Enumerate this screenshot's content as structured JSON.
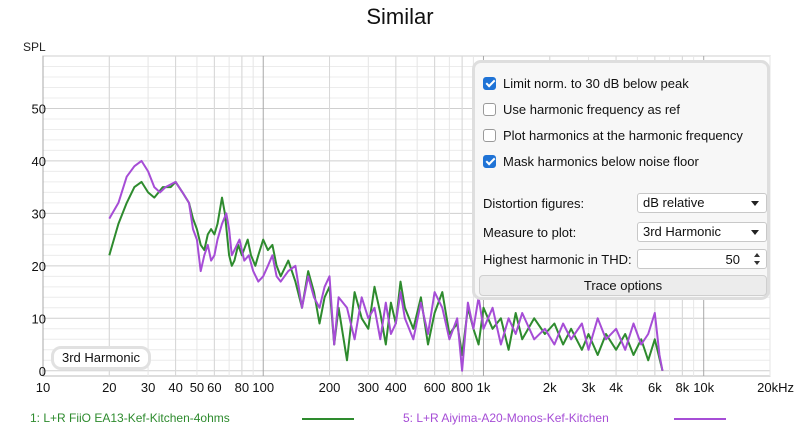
{
  "title": "Similar",
  "colors": {
    "series1": "#2e8b2e",
    "series2": "#a64dd6",
    "accent": "#1f73d6"
  },
  "options_panel": {
    "checkboxes": [
      {
        "label": "Limit norm. to 30 dB below peak",
        "checked": true
      },
      {
        "label": "Use harmonic frequency as ref",
        "checked": false
      },
      {
        "label": "Plot harmonics at the harmonic frequency",
        "checked": false
      },
      {
        "label": "Mask harmonics below noise floor",
        "checked": true
      }
    ],
    "distortion_figures": {
      "label": "Distortion figures:",
      "value": "dB relative"
    },
    "measure_to_plot": {
      "label": "Measure to plot:",
      "value": "3rd Harmonic"
    },
    "highest_harmonic": {
      "label": "Highest harmonic in THD:",
      "value": "50"
    },
    "trace_options_label": "Trace options"
  },
  "badge": "3rd Harmonic",
  "legend": [
    {
      "label": "1: L+R FiiO EA13-Kef-Kitchen-4ohms",
      "color": "#2e8b2e"
    },
    {
      "label": "5: L+R Aiyima-A20-Monos-Kef-Kitchen",
      "color": "#a64dd6"
    }
  ],
  "chart_data": {
    "type": "line",
    "ylabel": "SPL",
    "xscale": "log",
    "xlim": [
      10,
      20000
    ],
    "ylim": [
      -1,
      60
    ],
    "y_ticks": [
      0,
      10,
      20,
      30,
      40,
      50
    ],
    "x_ticks": [
      {
        "v": 10,
        "label": "10"
      },
      {
        "v": 20,
        "label": "20"
      },
      {
        "v": 30,
        "label": "30"
      },
      {
        "v": 40,
        "label": "40"
      },
      {
        "v": 50,
        "label": "50"
      },
      {
        "v": 60,
        "label": "60"
      },
      {
        "v": 80,
        "label": "80"
      },
      {
        "v": 100,
        "label": "100"
      },
      {
        "v": 200,
        "label": "200"
      },
      {
        "v": 300,
        "label": "300"
      },
      {
        "v": 400,
        "label": "400"
      },
      {
        "v": 600,
        "label": "600"
      },
      {
        "v": 800,
        "label": "800"
      },
      {
        "v": 1000,
        "label": "1k"
      },
      {
        "v": 2000,
        "label": "2k"
      },
      {
        "v": 3000,
        "label": "3k"
      },
      {
        "v": 4000,
        "label": "4k"
      },
      {
        "v": 6000,
        "label": "6k"
      },
      {
        "v": 8000,
        "label": "8k"
      },
      {
        "v": 10000,
        "label": "10k"
      },
      {
        "v": 20000,
        "label": "20kHz"
      }
    ],
    "grid": true,
    "series": [
      {
        "name": "1: L+R FiiO EA13-Kef-Kitchen-4ohms",
        "color": "#2e8b2e",
        "points": [
          [
            20,
            22
          ],
          [
            22,
            28
          ],
          [
            24,
            32
          ],
          [
            26,
            35
          ],
          [
            28,
            36
          ],
          [
            30,
            34
          ],
          [
            32,
            33
          ],
          [
            35,
            35
          ],
          [
            38,
            35
          ],
          [
            40,
            36
          ],
          [
            43,
            34
          ],
          [
            46,
            32
          ],
          [
            48,
            29
          ],
          [
            50,
            27
          ],
          [
            52,
            24
          ],
          [
            54,
            23
          ],
          [
            56,
            26
          ],
          [
            58,
            27
          ],
          [
            60,
            26
          ],
          [
            62,
            28
          ],
          [
            65,
            33
          ],
          [
            67,
            30
          ],
          [
            70,
            22
          ],
          [
            72,
            20
          ],
          [
            74,
            21
          ],
          [
            77,
            24
          ],
          [
            80,
            22
          ],
          [
            85,
            25
          ],
          [
            88,
            22
          ],
          [
            92,
            20
          ],
          [
            95,
            22
          ],
          [
            100,
            25
          ],
          [
            105,
            23
          ],
          [
            110,
            24
          ],
          [
            115,
            20
          ],
          [
            120,
            18
          ],
          [
            130,
            21
          ],
          [
            140,
            17
          ],
          [
            150,
            12
          ],
          [
            160,
            19
          ],
          [
            170,
            15
          ],
          [
            180,
            9
          ],
          [
            190,
            14
          ],
          [
            200,
            16
          ],
          [
            210,
            5
          ],
          [
            220,
            12
          ],
          [
            240,
            2
          ],
          [
            260,
            15
          ],
          [
            280,
            10
          ],
          [
            300,
            8
          ],
          [
            320,
            16
          ],
          [
            340,
            11
          ],
          [
            360,
            5
          ],
          [
            380,
            13
          ],
          [
            400,
            9
          ],
          [
            420,
            17
          ],
          [
            440,
            12
          ],
          [
            480,
            8
          ],
          [
            520,
            14
          ],
          [
            560,
            5
          ],
          [
            600,
            11
          ],
          [
            650,
            15
          ],
          [
            700,
            7
          ],
          [
            760,
            9
          ],
          [
            800,
            3
          ],
          [
            850,
            12
          ],
          [
            900,
            8
          ],
          [
            950,
            5
          ],
          [
            1000,
            12
          ],
          [
            1100,
            8
          ],
          [
            1200,
            10
          ],
          [
            1300,
            4
          ],
          [
            1400,
            11
          ],
          [
            1500,
            6
          ],
          [
            1700,
            10
          ],
          [
            1900,
            7
          ],
          [
            2100,
            9
          ],
          [
            2300,
            5
          ],
          [
            2500,
            8
          ],
          [
            2800,
            4
          ],
          [
            3000,
            7
          ],
          [
            3300,
            3
          ],
          [
            3600,
            7
          ],
          [
            4000,
            4
          ],
          [
            4400,
            7
          ],
          [
            4800,
            3
          ],
          [
            5200,
            6
          ],
          [
            5600,
            2
          ],
          [
            6000,
            6
          ],
          [
            6500,
            0
          ]
        ]
      },
      {
        "name": "5: L+R Aiyima-A20-Monos-Kef-Kitchen",
        "color": "#a64dd6",
        "points": [
          [
            20,
            29
          ],
          [
            22,
            32
          ],
          [
            24,
            37
          ],
          [
            26,
            39
          ],
          [
            28,
            40
          ],
          [
            30,
            38
          ],
          [
            32,
            35
          ],
          [
            34,
            34
          ],
          [
            36,
            35
          ],
          [
            40,
            36
          ],
          [
            43,
            34
          ],
          [
            46,
            32
          ],
          [
            48,
            27
          ],
          [
            50,
            25
          ],
          [
            52,
            19
          ],
          [
            54,
            22
          ],
          [
            56,
            24
          ],
          [
            58,
            21
          ],
          [
            60,
            22
          ],
          [
            62,
            25
          ],
          [
            65,
            28
          ],
          [
            68,
            30
          ],
          [
            70,
            27
          ],
          [
            72,
            22
          ],
          [
            74,
            23
          ],
          [
            78,
            25
          ],
          [
            82,
            21
          ],
          [
            86,
            22
          ],
          [
            90,
            19
          ],
          [
            95,
            17
          ],
          [
            100,
            18
          ],
          [
            105,
            20
          ],
          [
            110,
            22
          ],
          [
            115,
            18
          ],
          [
            120,
            17
          ],
          [
            130,
            19
          ],
          [
            140,
            20
          ],
          [
            150,
            12
          ],
          [
            160,
            18
          ],
          [
            170,
            14
          ],
          [
            180,
            12
          ],
          [
            190,
            16
          ],
          [
            200,
            18
          ],
          [
            210,
            5
          ],
          [
            220,
            14
          ],
          [
            240,
            12
          ],
          [
            260,
            6
          ],
          [
            280,
            14
          ],
          [
            300,
            10
          ],
          [
            320,
            12
          ],
          [
            340,
            6
          ],
          [
            360,
            13
          ],
          [
            380,
            7
          ],
          [
            400,
            9
          ],
          [
            420,
            15
          ],
          [
            440,
            10
          ],
          [
            480,
            6
          ],
          [
            520,
            13
          ],
          [
            560,
            7
          ],
          [
            600,
            15
          ],
          [
            650,
            12
          ],
          [
            700,
            6
          ],
          [
            760,
            10
          ],
          [
            800,
            0
          ],
          [
            850,
            13
          ],
          [
            900,
            8
          ],
          [
            950,
            14
          ],
          [
            1000,
            8
          ],
          [
            1100,
            12
          ],
          [
            1200,
            5
          ],
          [
            1300,
            10
          ],
          [
            1400,
            7
          ],
          [
            1500,
            11
          ],
          [
            1700,
            6
          ],
          [
            1900,
            8
          ],
          [
            2100,
            5
          ],
          [
            2300,
            9
          ],
          [
            2500,
            6
          ],
          [
            2800,
            9
          ],
          [
            3000,
            4
          ],
          [
            3300,
            10
          ],
          [
            3600,
            6
          ],
          [
            4000,
            8
          ],
          [
            4400,
            4
          ],
          [
            4800,
            9
          ],
          [
            5200,
            5
          ],
          [
            5600,
            7
          ],
          [
            6000,
            11
          ],
          [
            6300,
            3
          ],
          [
            6500,
            0
          ]
        ]
      }
    ]
  }
}
